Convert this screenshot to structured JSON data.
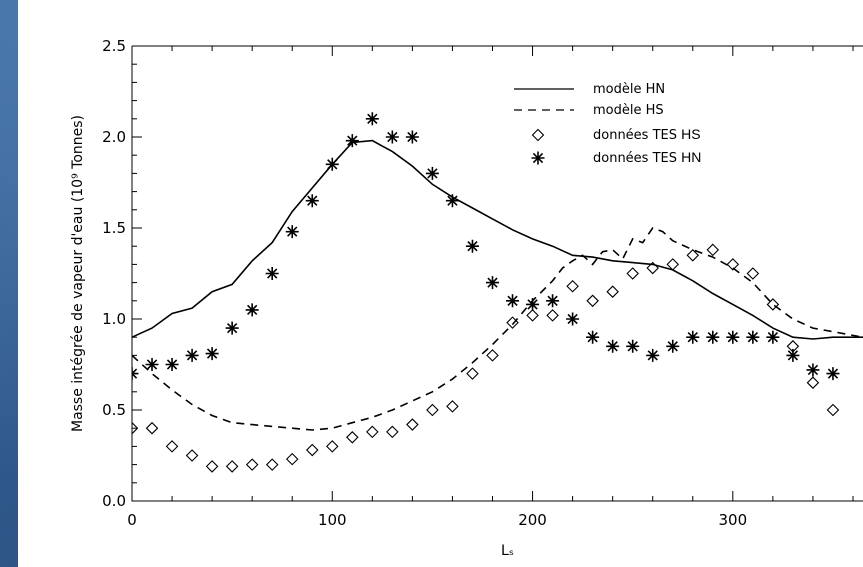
{
  "chart_data": {
    "type": "line",
    "xlabel": "Lₛ",
    "ylabel": "Masse intégrée de vapeur d'eau (10⁹ Tonnes)",
    "xlim": [
      0,
      365
    ],
    "ylim": [
      0,
      2.5
    ],
    "x_ticks": [
      "0",
      "100",
      "200",
      "300"
    ],
    "y_ticks": [
      "0.0",
      "0.5",
      "1.0",
      "1.5",
      "2.0",
      "2.5"
    ],
    "grid": false,
    "legend_position": "top-right",
    "series": [
      {
        "name": "modèle HN",
        "style": "solid",
        "x": [
          0,
          10,
          20,
          30,
          40,
          50,
          60,
          70,
          80,
          90,
          100,
          110,
          120,
          130,
          140,
          150,
          160,
          170,
          180,
          190,
          200,
          210,
          220,
          230,
          240,
          250,
          260,
          270,
          280,
          290,
          300,
          310,
          320,
          330,
          340,
          350,
          360,
          365
        ],
        "y": [
          0.9,
          0.95,
          1.03,
          1.06,
          1.15,
          1.19,
          1.32,
          1.42,
          1.59,
          1.72,
          1.85,
          1.97,
          1.98,
          1.92,
          1.84,
          1.74,
          1.67,
          1.61,
          1.55,
          1.49,
          1.44,
          1.4,
          1.35,
          1.34,
          1.32,
          1.31,
          1.3,
          1.27,
          1.21,
          1.14,
          1.08,
          1.02,
          0.95,
          0.9,
          0.89,
          0.9,
          0.9,
          0.9
        ]
      },
      {
        "name": "modèle HS",
        "style": "dashed",
        "x": [
          0,
          10,
          20,
          30,
          40,
          50,
          60,
          70,
          80,
          90,
          100,
          110,
          120,
          130,
          140,
          150,
          160,
          170,
          180,
          190,
          200,
          210,
          215,
          220,
          225,
          230,
          235,
          240,
          245,
          250,
          255,
          260,
          265,
          270,
          280,
          290,
          300,
          310,
          320,
          330,
          340,
          350,
          360,
          365
        ],
        "y": [
          0.8,
          0.7,
          0.61,
          0.53,
          0.47,
          0.43,
          0.42,
          0.41,
          0.4,
          0.39,
          0.4,
          0.43,
          0.46,
          0.5,
          0.55,
          0.6,
          0.67,
          0.76,
          0.86,
          0.97,
          1.1,
          1.21,
          1.28,
          1.32,
          1.35,
          1.3,
          1.37,
          1.38,
          1.33,
          1.44,
          1.42,
          1.5,
          1.48,
          1.43,
          1.38,
          1.34,
          1.28,
          1.2,
          1.08,
          1.0,
          0.95,
          0.93,
          0.91,
          0.9
        ]
      },
      {
        "name": "données TES HS",
        "style": "diamond",
        "x": [
          0,
          10,
          20,
          30,
          40,
          50,
          60,
          70,
          80,
          90,
          100,
          110,
          120,
          130,
          140,
          150,
          160,
          170,
          180,
          190,
          200,
          210,
          220,
          230,
          240,
          250,
          260,
          270,
          280,
          290,
          300,
          310,
          320,
          330,
          340,
          350
        ],
        "y": [
          0.4,
          0.4,
          0.3,
          0.25,
          0.19,
          0.19,
          0.2,
          0.2,
          0.23,
          0.28,
          0.3,
          0.35,
          0.38,
          0.38,
          0.42,
          0.5,
          0.52,
          0.7,
          0.8,
          0.98,
          1.02,
          1.02,
          1.18,
          1.1,
          1.15,
          1.25,
          1.28,
          1.3,
          1.35,
          1.38,
          1.3,
          1.25,
          1.08,
          0.85,
          0.65,
          0.5
        ]
      },
      {
        "name": "données TES HN",
        "style": "asterisk",
        "x": [
          0,
          10,
          20,
          30,
          40,
          50,
          60,
          70,
          80,
          90,
          100,
          110,
          120,
          130,
          140,
          150,
          160,
          170,
          180,
          190,
          200,
          210,
          220,
          230,
          240,
          250,
          260,
          270,
          280,
          290,
          300,
          310,
          320,
          330,
          340,
          350
        ],
        "y": [
          0.7,
          0.75,
          0.75,
          0.8,
          0.81,
          0.95,
          1.05,
          1.25,
          1.48,
          1.65,
          1.85,
          1.98,
          2.1,
          2.0,
          2.0,
          1.8,
          1.65,
          1.4,
          1.2,
          1.1,
          1.08,
          1.1,
          1.0,
          0.9,
          0.85,
          0.85,
          0.8,
          0.85,
          0.9,
          0.9,
          0.9,
          0.9,
          0.9,
          0.8,
          0.72,
          0.7
        ]
      }
    ],
    "legend": [
      {
        "prefix": "modèle HN",
        "suffix": ""
      },
      {
        "prefix": "modèle HS",
        "suffix": ""
      },
      {
        "prefix": "données TES ",
        "suffix": "HS"
      },
      {
        "prefix": "données TES ",
        "suffix": "HN"
      }
    ]
  }
}
